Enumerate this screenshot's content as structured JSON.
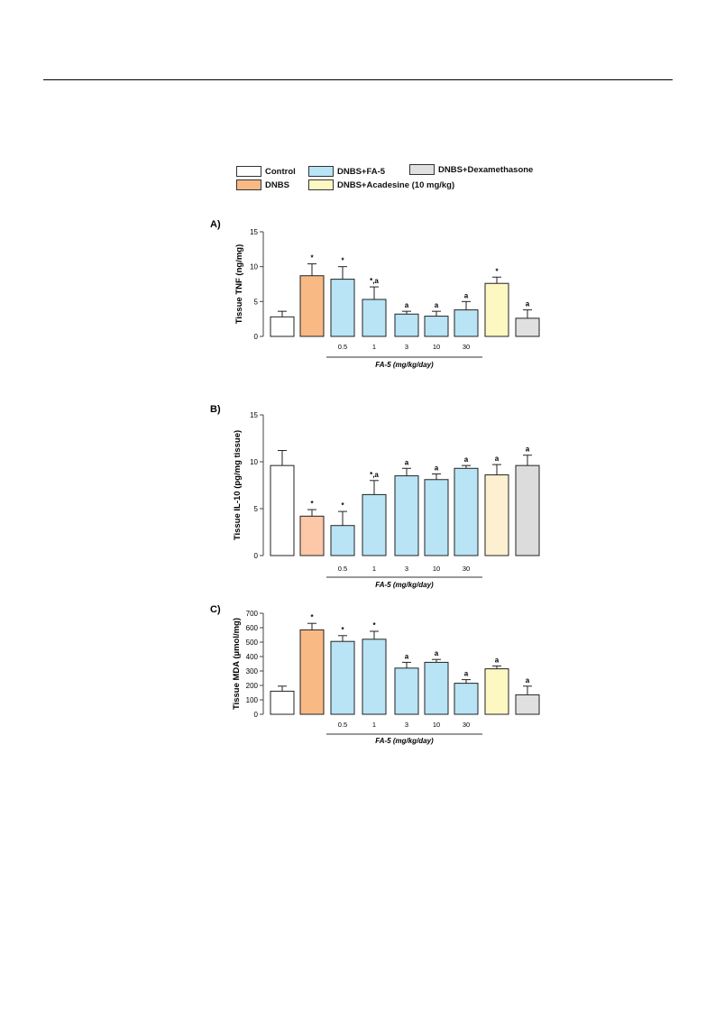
{
  "legend": {
    "items": [
      {
        "label": "Control",
        "color": "#ffffff"
      },
      {
        "label": "DNBS",
        "color": "#f8b984"
      },
      {
        "label": "DNBS+FA-5",
        "color": "#b8e4f5"
      },
      {
        "label": "DNBS+Acadesine (10 mg/kg)",
        "color": "#fdf8c2"
      },
      {
        "label": "DNBS+Dexamethasone",
        "color": "#e0e0e0"
      }
    ]
  },
  "chart_data": [
    {
      "type": "bar",
      "panel": "A)",
      "ylabel": "Tissue TNF (ng/mg)",
      "ylim": [
        0,
        15
      ],
      "yticks": [
        0,
        5,
        10,
        15
      ],
      "categories": [
        "Control",
        "DNBS",
        "0.5",
        "1",
        "3",
        "10",
        "30",
        "Acadesine",
        "Dexamethasone"
      ],
      "category_labels": [
        "",
        "",
        "0.5",
        "1",
        "3",
        "10",
        "30",
        "",
        ""
      ],
      "values": [
        2.8,
        8.7,
        8.2,
        5.3,
        3.2,
        2.9,
        3.8,
        7.6,
        2.6
      ],
      "errors": [
        0.8,
        1.7,
        1.8,
        1.8,
        0.4,
        0.7,
        1.2,
        0.9,
        1.2
      ],
      "annotations": [
        "",
        "*",
        "*",
        "*,a",
        "a",
        "a",
        "a",
        "*",
        "a"
      ],
      "colors": [
        "#ffffff",
        "#f8b984",
        "#b8e4f5",
        "#b8e4f5",
        "#b8e4f5",
        "#b8e4f5",
        "#b8e4f5",
        "#fdf8c2",
        "#e0e0e0"
      ],
      "group_label": "FA-5 (mg/kg/day)"
    },
    {
      "type": "bar",
      "panel": "B)",
      "ylabel": "Tissue IL-10 (pg/mg tissue)",
      "ylim": [
        0,
        15
      ],
      "yticks": [
        0,
        5,
        10,
        15
      ],
      "categories": [
        "Control",
        "DNBS",
        "0.5",
        "1",
        "3",
        "10",
        "30",
        "Acadesine",
        "Dexamethasone"
      ],
      "category_labels": [
        "",
        "",
        "0.5",
        "1",
        "3",
        "10",
        "30",
        "",
        ""
      ],
      "values": [
        9.6,
        4.2,
        3.2,
        6.5,
        8.5,
        8.1,
        9.3,
        8.6,
        9.6
      ],
      "errors": [
        1.6,
        0.7,
        1.5,
        1.5,
        0.8,
        0.6,
        0.3,
        1.1,
        1.1
      ],
      "annotations": [
        "",
        "*",
        "*",
        "*,a",
        "a",
        "a",
        "a",
        "a",
        "a"
      ],
      "colors": [
        "#ffffff",
        "#fcc8a8",
        "#b8e4f5",
        "#b8e4f5",
        "#b8e4f5",
        "#b8e4f5",
        "#b8e4f5",
        "#fdf0d0",
        "#dcdcdc"
      ],
      "group_label": "FA-5 (mg/kg/day)"
    },
    {
      "type": "bar",
      "panel": "C)",
      "ylabel": "Tissue MDA (µmol/mg)",
      "ylim": [
        0,
        700
      ],
      "yticks": [
        0,
        100,
        200,
        300,
        400,
        500,
        600,
        700
      ],
      "categories": [
        "Control",
        "DNBS",
        "0.5",
        "1",
        "3",
        "10",
        "30",
        "Acadesine",
        "Dexamethasone"
      ],
      "category_labels": [
        "",
        "",
        "0.5",
        "1",
        "3",
        "10",
        "30",
        "",
        ""
      ],
      "values": [
        160,
        585,
        505,
        520,
        320,
        360,
        215,
        315,
        135
      ],
      "errors": [
        35,
        45,
        40,
        55,
        40,
        20,
        25,
        20,
        60
      ],
      "annotations": [
        "",
        "*",
        "*",
        "*",
        "a",
        "a",
        "a",
        "a",
        "a"
      ],
      "colors": [
        "#ffffff",
        "#f8b984",
        "#b8e4f5",
        "#b8e4f5",
        "#b8e4f5",
        "#b8e4f5",
        "#b8e4f5",
        "#fdf8c2",
        "#e0e0e0"
      ],
      "group_label": "FA-5 (mg/kg/day)"
    }
  ]
}
